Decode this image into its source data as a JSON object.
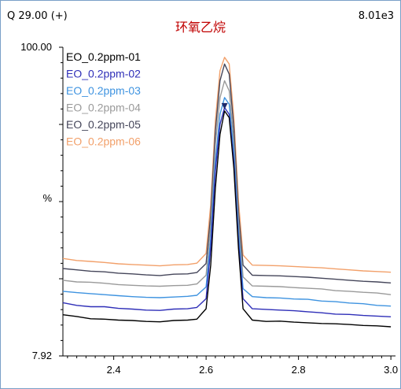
{
  "header": {
    "left": "Q 29.00 (+)",
    "title": "环氧乙烷",
    "right": "8.01e3"
  },
  "chart_data": {
    "type": "line",
    "ylabel": "%",
    "y_max_label": "100.00",
    "y_min_label": "7.92",
    "xlim": [
      2.29,
      3.01
    ],
    "ylim": [
      7.92,
      100
    ],
    "x_ticks": [
      "2.4",
      "2.6",
      "2.8",
      "3.0"
    ],
    "x_tick_values": [
      2.4,
      2.6,
      2.8,
      3.0
    ],
    "peak_rt": 2.64,
    "x": [
      2.29,
      2.32,
      2.35,
      2.38,
      2.41,
      2.44,
      2.47,
      2.5,
      2.53,
      2.56,
      2.58,
      2.6,
      2.61,
      2.62,
      2.63,
      2.64,
      2.65,
      2.66,
      2.67,
      2.68,
      2.7,
      2.73,
      2.76,
      2.79,
      2.82,
      2.85,
      2.88,
      2.91,
      2.94,
      2.97,
      3.0
    ],
    "series": [
      {
        "name": "EO_0.2ppm-01",
        "color": "#000000",
        "values": [
          20.2,
          19.7,
          19.0,
          18.9,
          18.6,
          18.5,
          18.2,
          18.1,
          18.5,
          18.6,
          18.9,
          22.0,
          35.0,
          58.0,
          74.0,
          81.0,
          79.0,
          64.0,
          40.0,
          22.0,
          18.6,
          18.2,
          18.3,
          18.0,
          17.8,
          17.6,
          17.5,
          17.3,
          17.0,
          16.9,
          16.6
        ]
      },
      {
        "name": "EO_0.2ppm-02",
        "color": "#2f2fb8",
        "values": [
          23.8,
          23.0,
          22.6,
          22.6,
          22.1,
          21.9,
          21.6,
          21.5,
          21.9,
          22.0,
          22.4,
          25.0,
          40.0,
          63.0,
          77.0,
          82.0,
          80.0,
          66.0,
          42.0,
          25.0,
          22.0,
          21.8,
          21.6,
          21.4,
          21.1,
          20.8,
          20.4,
          20.3,
          20.0,
          19.8,
          19.6
        ]
      },
      {
        "name": "EO_0.2ppm-03",
        "color": "#3e93e0",
        "values": [
          27.2,
          26.8,
          26.5,
          26.2,
          25.9,
          25.6,
          25.4,
          25.3,
          25.5,
          25.7,
          26.0,
          28.5,
          43.0,
          66.0,
          80.0,
          85.0,
          83.0,
          69.0,
          45.0,
          28.0,
          25.6,
          25.3,
          25.2,
          24.9,
          24.8,
          24.3,
          24.1,
          23.7,
          23.5,
          23.0,
          22.8
        ]
      },
      {
        "name": "EO_0.2ppm-04",
        "color": "#9a9a9a",
        "values": [
          30.5,
          30.0,
          29.9,
          29.6,
          29.2,
          29.0,
          28.8,
          28.7,
          28.9,
          29.0,
          29.4,
          32.0,
          47.0,
          71.0,
          85.0,
          90.0,
          87.0,
          72.0,
          48.0,
          31.5,
          28.8,
          28.7,
          28.6,
          28.3,
          28.1,
          27.9,
          27.4,
          27.2,
          26.9,
          26.7,
          26.2
        ]
      },
      {
        "name": "EO_0.2ppm-05",
        "color": "#45465a",
        "values": [
          34.0,
          33.6,
          33.2,
          33.0,
          32.6,
          32.4,
          32.1,
          31.9,
          32.3,
          32.4,
          32.8,
          35.5,
          50.0,
          75.0,
          90.0,
          95.0,
          92.0,
          76.0,
          51.0,
          35.0,
          32.0,
          31.9,
          31.8,
          31.6,
          31.4,
          31.1,
          30.8,
          30.5,
          30.2,
          30.0,
          29.7
        ]
      },
      {
        "name": "EO_0.2ppm-06",
        "color": "#f2a06a",
        "values": [
          37.0,
          36.4,
          36.1,
          35.8,
          35.4,
          35.2,
          35.0,
          34.8,
          35.1,
          35.2,
          35.6,
          38.5,
          53.0,
          78.0,
          93.0,
          97.0,
          95.0,
          79.0,
          54.0,
          38.0,
          35.0,
          34.9,
          34.8,
          34.6,
          34.4,
          34.2,
          33.9,
          33.6,
          33.3,
          33.1,
          32.9
        ]
      }
    ]
  }
}
